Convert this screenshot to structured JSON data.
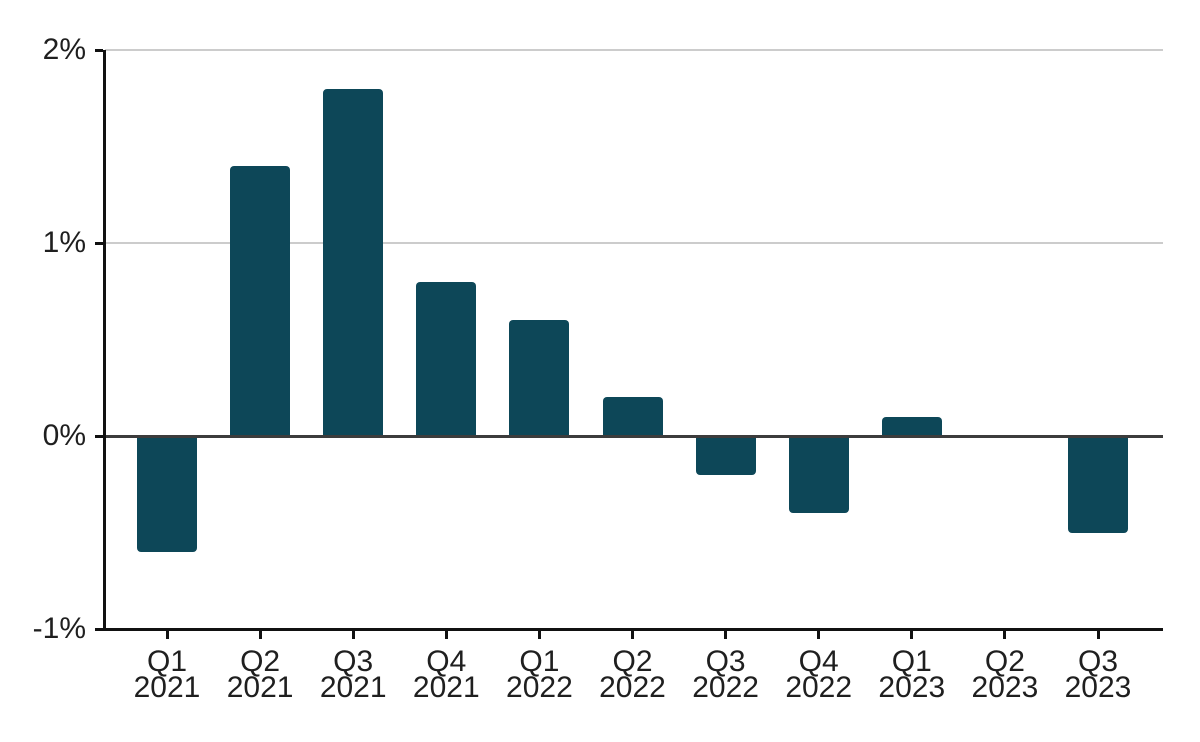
{
  "chart_data": {
    "type": "bar",
    "title": "",
    "xlabel": "",
    "ylabel": "",
    "unit": "%",
    "categories": [
      "Q1 2021",
      "Q2 2021",
      "Q3 2021",
      "Q4 2021",
      "Q1 2022",
      "Q2 2022",
      "Q3 2022",
      "Q4 2022",
      "Q1 2023",
      "Q2 2023",
      "Q3 2023"
    ],
    "values": [
      -0.6,
      1.4,
      1.8,
      0.8,
      0.6,
      0.2,
      -0.2,
      -0.4,
      0.1,
      0,
      -0.5
    ],
    "ylim": [
      -1,
      2
    ],
    "yticks": [
      {
        "value": 2,
        "label": "2%"
      },
      {
        "value": 1,
        "label": "1%"
      },
      {
        "value": 0,
        "label": "0%"
      },
      {
        "value": -1,
        "label": "-1%"
      }
    ],
    "grid": "horizontal",
    "legend_position": "none",
    "colors": {
      "bar": "#0d4758",
      "gridline": "#cccccc",
      "zero_line": "#3c3c3c",
      "axis": "#111111",
      "text": "#1f1f1f"
    }
  }
}
